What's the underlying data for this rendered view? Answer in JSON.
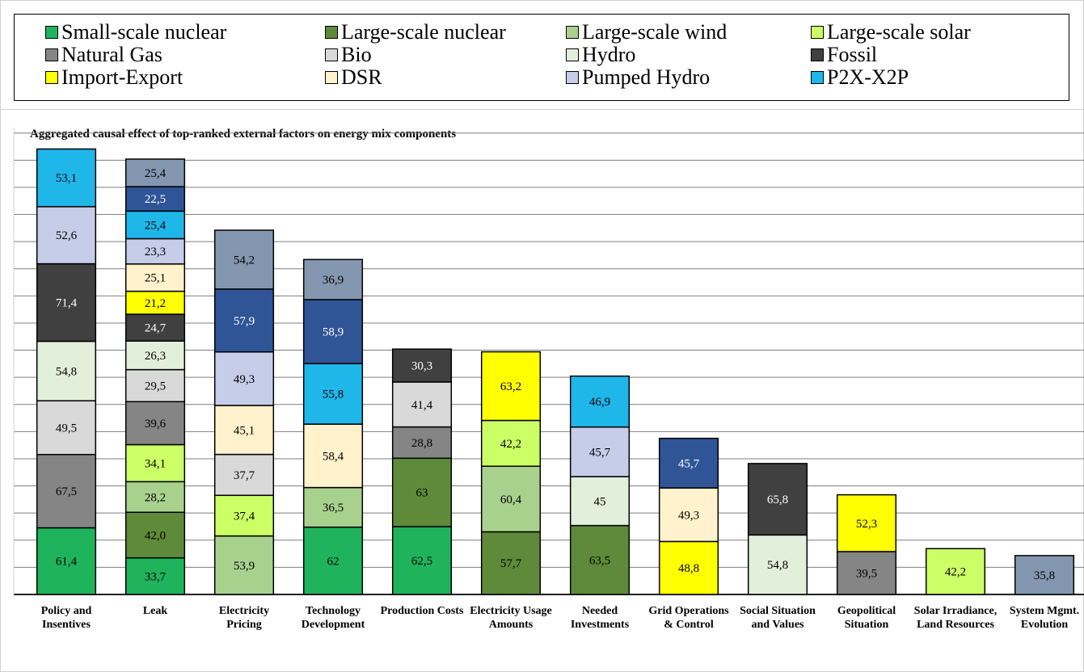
{
  "chart_data": {
    "type": "stacked_bar",
    "title": "Aggregated causal effect of top-ranked external factors on energy mix components",
    "categories": [
      "Policy and Insentives",
      "Leak",
      "Electricity Pricing",
      "Technology Development",
      "Production Costs",
      "Electricity Usage Amounts",
      "Needed Investments",
      "Grid Operations & Control",
      "Social Situation and Values",
      "Geopolitical Situation",
      "Solar Irradiance, Land Resources",
      "System Mgmt. Evolution"
    ],
    "ylim": [
      0,
      430
    ],
    "yticks": [
      0,
      25,
      50,
      75,
      100,
      125,
      150,
      175,
      200,
      225,
      250,
      275,
      300,
      325,
      350,
      375,
      400,
      425
    ],
    "grid": true,
    "series": [
      {
        "name": "Small-scale nuclear",
        "color": "#1fb35c",
        "values": [
          61.4,
          33.7,
          null,
          62,
          62.5,
          null,
          null,
          null,
          null,
          null,
          null,
          null
        ],
        "value_labels": [
          "61,4",
          "33,7",
          null,
          "62",
          "62,5",
          null,
          null,
          null,
          null,
          null,
          null,
          null
        ]
      },
      {
        "name": "Large-scale nuclear",
        "color": "#5e8a3a",
        "values": [
          null,
          42.0,
          null,
          null,
          63,
          57.7,
          63.5,
          null,
          null,
          null,
          null,
          null
        ],
        "value_labels": [
          null,
          "42,0",
          null,
          null,
          "63",
          "57,7",
          "63,5",
          null,
          null,
          null,
          null,
          null
        ]
      },
      {
        "name": "Large-scale wind",
        "color": "#a9d18e",
        "values": [
          null,
          28.2,
          53.9,
          36.5,
          null,
          60.4,
          null,
          null,
          null,
          null,
          null,
          null
        ],
        "value_labels": [
          null,
          "28,2",
          "53,9",
          "36,5",
          null,
          "60,4",
          null,
          null,
          null,
          null,
          null,
          null
        ]
      },
      {
        "name": "Large-scale solar",
        "color": "#ccff66",
        "values": [
          null,
          34.1,
          37.4,
          null,
          null,
          42.2,
          null,
          null,
          null,
          null,
          42.2,
          null
        ],
        "value_labels": [
          null,
          "34,1",
          "37,4",
          null,
          null,
          "42,2",
          null,
          null,
          null,
          null,
          "42,2",
          null
        ]
      },
      {
        "name": "Natural Gas",
        "color": "#858585",
        "values": [
          67.5,
          39.6,
          null,
          null,
          28.8,
          null,
          null,
          null,
          null,
          39.5,
          null,
          null
        ],
        "value_labels": [
          "67,5",
          "39,6",
          null,
          null,
          "28,8",
          null,
          null,
          null,
          null,
          "39,5",
          null,
          null
        ]
      },
      {
        "name": "Bio",
        "color": "#d9d9d9",
        "values": [
          49.5,
          29.5,
          37.7,
          null,
          41.4,
          null,
          null,
          null,
          null,
          null,
          null,
          null
        ],
        "value_labels": [
          "49,5",
          "29,5",
          "37,7",
          null,
          "41,4",
          null,
          null,
          null,
          null,
          null,
          null,
          null
        ]
      },
      {
        "name": "Hydro",
        "color": "#e2efda",
        "values": [
          54.8,
          26.3,
          null,
          null,
          null,
          null,
          45,
          null,
          54.8,
          null,
          null,
          null
        ],
        "value_labels": [
          "54,8",
          "26,3",
          null,
          null,
          null,
          null,
          "45",
          null,
          "54,8",
          null,
          null,
          null
        ]
      },
      {
        "name": "Fossil",
        "color": "#404040",
        "values": [
          71.4,
          24.7,
          null,
          null,
          30.3,
          null,
          null,
          null,
          65.8,
          null,
          null,
          null
        ],
        "value_labels": [
          "71,4",
          "24,7",
          null,
          null,
          "30,3",
          null,
          null,
          null,
          "65,8",
          null,
          null,
          null
        ]
      },
      {
        "name": "Import-Export",
        "color": "#ffff00",
        "values": [
          null,
          21.2,
          null,
          null,
          null,
          63.2,
          null,
          48.8,
          null,
          52.3,
          null,
          null
        ],
        "value_labels": [
          null,
          "21,2",
          null,
          null,
          null,
          "63,2",
          null,
          "48,8",
          null,
          "52,3",
          null,
          null
        ]
      },
      {
        "name": "DSR",
        "color": "#fff2cc",
        "values": [
          null,
          25.1,
          45.1,
          58.4,
          null,
          null,
          null,
          49.3,
          null,
          null,
          null,
          null
        ],
        "value_labels": [
          null,
          "25,1",
          "45,1",
          "58,4",
          null,
          null,
          null,
          "49,3",
          null,
          null,
          null,
          null
        ]
      },
      {
        "name": "Pumped Hydro",
        "color": "#c5cde9",
        "values": [
          52.6,
          23.3,
          49.3,
          null,
          null,
          null,
          45.7,
          null,
          null,
          null,
          null,
          null
        ],
        "value_labels": [
          "52,6",
          "23,3",
          "49,3",
          null,
          null,
          null,
          "45,7",
          null,
          null,
          null,
          null,
          null
        ]
      },
      {
        "name": "P2X-X2P",
        "color": "#1fb6ea",
        "values": [
          53.1,
          25.4,
          null,
          55.8,
          null,
          null,
          46.9,
          null,
          null,
          null,
          null,
          null
        ],
        "value_labels": [
          "53,1",
          "25,4",
          null,
          "55,8",
          null,
          null,
          "46,9",
          null,
          null,
          null,
          null,
          null
        ]
      },
      {
        "color": "#2f5597",
        "values": [
          null,
          22.5,
          57.9,
          58.9,
          null,
          null,
          null,
          45.7,
          null,
          null,
          null,
          null
        ],
        "value_labels": [
          null,
          "22,5",
          "57,9",
          "58,9",
          null,
          null,
          null,
          "45,7",
          null,
          null,
          null,
          null
        ]
      },
      {
        "color": "#8497b0",
        "values": [
          null,
          25.4,
          54.2,
          36.9,
          null,
          null,
          null,
          null,
          null,
          null,
          null,
          35.8
        ],
        "value_labels": [
          null,
          "25,4",
          "54,2",
          "36,9",
          null,
          null,
          null,
          null,
          null,
          null,
          null,
          "35,8"
        ]
      }
    ]
  }
}
